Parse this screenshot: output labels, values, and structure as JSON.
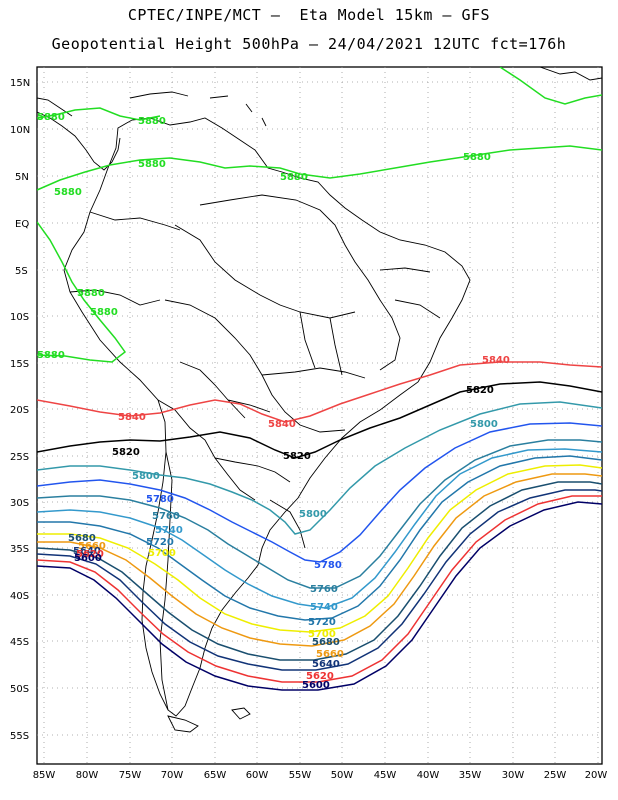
{
  "header": {
    "line1": "CPTEC/INPE/MCT –  Eta Model 15km – GFS",
    "line2": "Geopotential Height 500hPa – 24/04/2021 12UTC fct=176h"
  },
  "axes": {
    "lat_ticks": [
      "15N",
      "10N",
      "5N",
      "EQ",
      "5S",
      "10S",
      "15S",
      "20S",
      "25S",
      "30S",
      "35S",
      "40S",
      "45S",
      "50S",
      "55S"
    ],
    "lon_ticks": [
      "85W",
      "80W",
      "75W",
      "70W",
      "65W",
      "60W",
      "55W",
      "50W",
      "45W",
      "40W",
      "35W",
      "30W",
      "25W",
      "20W"
    ]
  },
  "contour_labels": {
    "c5880_a": "5880",
    "c5880_b": "5880",
    "c5880_c": "5880",
    "c5880_d": "5880",
    "c5880_e": "5880",
    "c5880_f": "5880",
    "c5880_g": "5880",
    "c5880_h": "5880",
    "c5880_i": "5880",
    "c5840_a": "5840",
    "c5840_b": "5840",
    "c5840_c": "5840",
    "c5820_a": "5820",
    "c5820_b": "5820",
    "c5820_c": "5820",
    "c5800_a": "5800",
    "c5800_b": "5800",
    "c5800_c": "5800",
    "c5780_a": "5780",
    "c5780_b": "5780",
    "c5760_a": "5760",
    "c5760_b": "5760",
    "c5740_a": "5740",
    "c5740_b": "5740",
    "c5720_a": "5720",
    "c5720_b": "5720",
    "c5700_a": "5700",
    "c5700_b": "5700",
    "c5680_a": "5680",
    "c5680_b": "5680",
    "c5660_a": "5660",
    "c5660_b": "5660",
    "c5640_a": "5640",
    "c5640_b": "5640",
    "c5620_a": "5620",
    "c5620_b": "5620",
    "c5600_a": "5600",
    "c5600_b": "5600"
  },
  "colors": {
    "c5880": "#22dd22",
    "c5840": "#ee4444",
    "c5820": "#000000",
    "c5800": "#3399aa",
    "c5780": "#2255ee",
    "c5760": "#2a7f9f",
    "c5740": "#3399cc",
    "c5720": "#2277aa",
    "c5700": "#eeee00",
    "c5680": "#ee9911",
    "c5660": "#1a4f6f",
    "c5640": "#113377",
    "c5620": "#ee3333",
    "c5600": "#000066"
  }
}
